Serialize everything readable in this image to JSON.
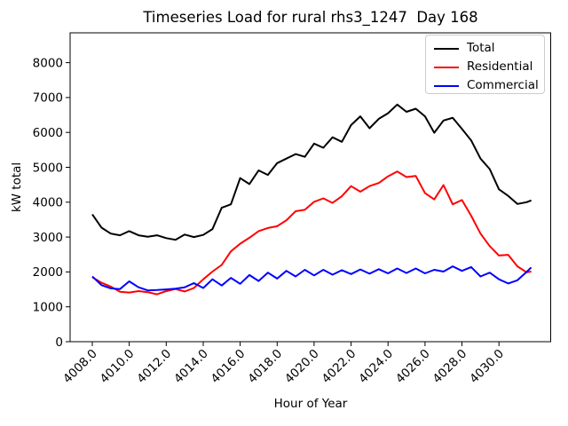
{
  "chart_data": {
    "type": "line",
    "title": "Timeseries Load for rural rhs3_1247  Day 168",
    "xlabel": "Hour of Year",
    "ylabel": "kW total",
    "xlim": [
      4006.8,
      4032.8
    ],
    "ylim": [
      0,
      8855
    ],
    "grid": false,
    "legend_position": "upper right",
    "xticks": {
      "values": [
        4008,
        4010,
        4012,
        4014,
        4016,
        4018,
        4020,
        4022,
        4024,
        4026,
        4028,
        4030
      ],
      "labels": [
        "4008.0",
        "4010.0",
        "4012.0",
        "4014.0",
        "4016.0",
        "4018.0",
        "4020.0",
        "4022.0",
        "4024.0",
        "4026.0",
        "4028.0",
        "4030.0"
      ]
    },
    "yticks": {
      "values": [
        0,
        1000,
        2000,
        3000,
        4000,
        5000,
        6000,
        7000,
        8000
      ],
      "labels": [
        "0",
        "1000",
        "2000",
        "3000",
        "4000",
        "5000",
        "6000",
        "7000",
        "8000"
      ]
    },
    "x": [
      4008.0,
      4008.5,
      4009.0,
      4009.5,
      4010.0,
      4010.5,
      4011.0,
      4011.5,
      4012.0,
      4012.5,
      4013.0,
      4013.5,
      4014.0,
      4014.5,
      4015.0,
      4015.5,
      4016.0,
      4016.5,
      4017.0,
      4017.5,
      4018.0,
      4018.5,
      4019.0,
      4019.5,
      4020.0,
      4020.5,
      4021.0,
      4021.5,
      4022.0,
      4022.5,
      4023.0,
      4023.5,
      4024.0,
      4024.5,
      4025.0,
      4025.5,
      4026.0,
      4026.5,
      4027.0,
      4027.5,
      4028.0,
      4028.5,
      4029.0,
      4029.5,
      4030.0,
      4030.5,
      4031.0,
      4031.5,
      4031.75
    ],
    "series": [
      {
        "name": "Total",
        "color": "#000000",
        "values": [
          3650,
          3270,
          3100,
          3050,
          3170,
          3050,
          3010,
          3050,
          2970,
          2920,
          3070,
          3000,
          3060,
          3230,
          3840,
          3940,
          4690,
          4520,
          4910,
          4780,
          5120,
          5250,
          5380,
          5300,
          5680,
          5560,
          5860,
          5730,
          6210,
          6460,
          6120,
          6390,
          6550,
          6800,
          6590,
          6680,
          6460,
          5990,
          6340,
          6420,
          6100,
          5770,
          5250,
          4950,
          4370,
          4180,
          3950,
          4000,
          4050
        ]
      },
      {
        "name": "Residential",
        "color": "#ff0000",
        "values": [
          1850,
          1690,
          1580,
          1430,
          1410,
          1450,
          1420,
          1360,
          1450,
          1510,
          1440,
          1540,
          1790,
          2010,
          2200,
          2590,
          2810,
          2980,
          3170,
          3260,
          3310,
          3480,
          3740,
          3780,
          4010,
          4110,
          3980,
          4170,
          4460,
          4300,
          4460,
          4550,
          4740,
          4880,
          4720,
          4750,
          4260,
          4080,
          4490,
          3940,
          4060,
          3610,
          3100,
          2740,
          2470,
          2490,
          2160,
          1990,
          2010
        ]
      },
      {
        "name": "Commercial",
        "color": "#0000ff",
        "values": [
          1870,
          1620,
          1530,
          1510,
          1730,
          1560,
          1470,
          1480,
          1500,
          1520,
          1560,
          1680,
          1540,
          1790,
          1610,
          1830,
          1660,
          1910,
          1740,
          1980,
          1810,
          2030,
          1870,
          2060,
          1900,
          2060,
          1920,
          2050,
          1940,
          2070,
          1950,
          2080,
          1960,
          2100,
          1970,
          2100,
          1960,
          2060,
          2010,
          2160,
          2030,
          2140,
          1870,
          1980,
          1790,
          1670,
          1760,
          2000,
          2130
        ]
      }
    ]
  }
}
